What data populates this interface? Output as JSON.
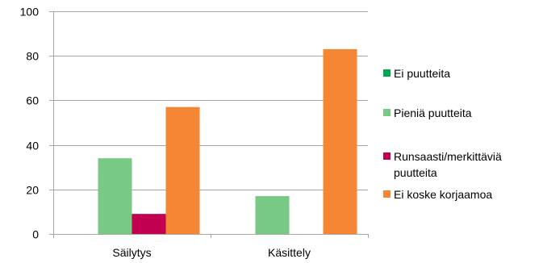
{
  "chart_data": {
    "type": "bar",
    "categories": [
      "Säilytys",
      "Käsittely"
    ],
    "series": [
      {
        "name": "Ei puutteita",
        "values": [
          0,
          0
        ],
        "color": "#00a651"
      },
      {
        "name": "Pieniä puutteita",
        "values": [
          34,
          17
        ],
        "color": "#77c985"
      },
      {
        "name": "Runsaasti/merkittäviä puutteita",
        "values": [
          9,
          0
        ],
        "color": "#c1004f"
      },
      {
        "name": "Ei koske korjaamoa",
        "values": [
          57,
          83
        ],
        "color": "#f58634"
      }
    ],
    "ylim": [
      0,
      100
    ],
    "yticks": [
      0,
      20,
      40,
      60,
      80,
      100
    ],
    "grid": true,
    "legend_position": "right"
  }
}
